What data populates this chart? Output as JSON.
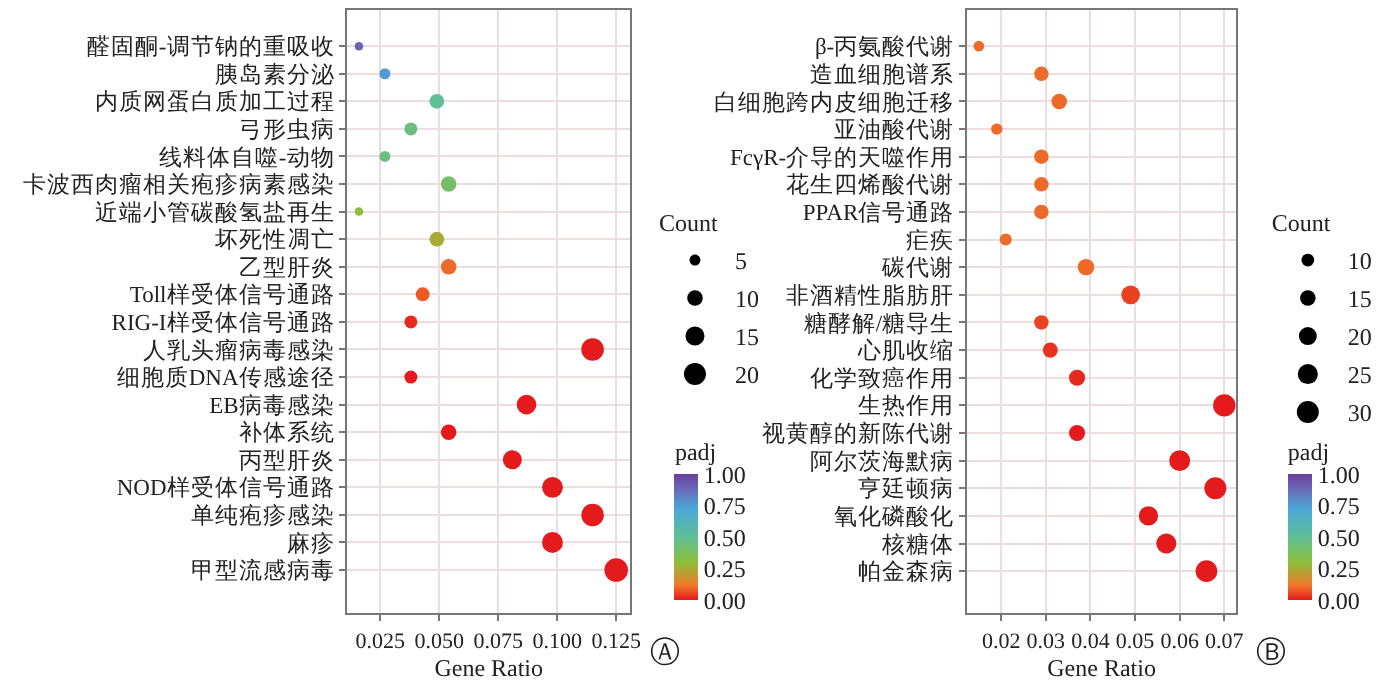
{
  "chart_data": [
    {
      "type": "bubble",
      "orientation": "horizontal",
      "xlabel": "Gene Ratio",
      "legend_title": "Count",
      "clabel": "padj",
      "grid": true,
      "annotations": [
        "Ⓐ"
      ],
      "categories": [
        "醛固酮-调节钠的重吸收",
        "胰岛素分泌",
        "内质网蛋白质加工过程",
        "弓形虫病",
        "线料体自噬-动物",
        "卡波西肉瘤相关疱疹病素感染",
        "近端小管碳酸氢盐再生",
        "坏死性凋亡",
        "乙型肝炎",
        "Toll样受体信号通路",
        "RIG-I样受体信号通路",
        "人乳头瘤病毒感染",
        "细胞质DNA传感途径",
        "EB病毒感染",
        "补体系统",
        "丙型肝炎",
        "NOD样受体信号通路",
        "单纯疱疹感染",
        "麻疹",
        "甲型流感病毒"
      ],
      "values": [
        0.016,
        0.027,
        0.049,
        0.038,
        0.027,
        0.054,
        0.016,
        0.049,
        0.054,
        0.043,
        0.038,
        0.115,
        0.038,
        0.087,
        0.054,
        0.081,
        0.098,
        0.115,
        0.098,
        0.125
      ],
      "sizes": [
        3,
        5,
        9,
        7,
        5,
        10,
        3,
        9,
        10,
        8,
        7,
        21,
        7,
        16,
        10,
        15,
        18,
        21,
        18,
        23
      ],
      "cvalues": [
        0.9,
        0.75,
        0.5,
        0.45,
        0.45,
        0.4,
        0.3,
        0.25,
        0.1,
        0.08,
        0.02,
        0,
        0,
        0,
        0,
        0,
        0,
        0,
        0,
        0
      ],
      "size_legend": [
        5,
        10,
        15,
        20
      ],
      "clim": [
        0,
        1
      ],
      "cticks": [
        {
          "value": 0,
          "label": "0.00"
        },
        {
          "value": 0.25,
          "label": "0.25"
        },
        {
          "value": 0.5,
          "label": "0.50"
        },
        {
          "value": 0.75,
          "label": "0.75"
        },
        {
          "value": 1,
          "label": "1.00"
        }
      ],
      "xlim": [
        0.011,
        0.131
      ],
      "xticks": [
        {
          "value": 0.025,
          "label": "0.025"
        },
        {
          "value": 0.05,
          "label": "0.050"
        },
        {
          "value": 0.075,
          "label": "0.075"
        },
        {
          "value": 0.1,
          "label": "0.100"
        },
        {
          "value": 0.125,
          "label": "0.125"
        }
      ]
    },
    {
      "type": "bubble",
      "orientation": "horizontal",
      "xlabel": "Gene Ratio",
      "legend_title": "Count",
      "clabel": "padj",
      "grid": true,
      "annotations": [
        "Ⓑ"
      ],
      "categories": [
        "β-丙氨酸代谢",
        "造血细胞谱系",
        "白细胞跨内皮细胞迁移",
        "亚油酸代谢",
        "FcγR-介导的天噬作用",
        "花生四烯酸代谢",
        "PPAR信号通路",
        "疟疾",
        "碳代谢",
        "非酒精性脂肪肝",
        "糖酵解/糖导生",
        "心肌收缩",
        "化学致癌作用",
        "生热作用",
        "视黄醇的新陈代谢",
        "阿尔茨海默病",
        "亨廷顿病",
        "氧化磷酸化",
        "核糖体",
        "帕金森病"
      ],
      "values": [
        0.015,
        0.029,
        0.033,
        0.019,
        0.029,
        0.029,
        0.029,
        0.021,
        0.039,
        0.049,
        0.029,
        0.031,
        0.037,
        0.07,
        0.037,
        0.06,
        0.068,
        0.053,
        0.057,
        0.066
      ],
      "sizes": [
        7,
        13,
        15,
        8,
        13,
        13,
        13,
        9,
        17,
        22,
        13,
        14,
        16,
        31,
        16,
        27,
        30,
        23,
        25,
        29
      ],
      "cvalues": [
        0.1,
        0.1,
        0.1,
        0.1,
        0.1,
        0.1,
        0.1,
        0.1,
        0.1,
        0.05,
        0.05,
        0.03,
        0.02,
        0,
        0,
        0,
        0,
        0,
        0,
        0
      ],
      "size_legend": [
        10,
        15,
        20,
        25,
        30
      ],
      "clim": [
        0,
        1
      ],
      "cticks": [
        {
          "value": 0,
          "label": "0.00"
        },
        {
          "value": 0.25,
          "label": "0.25"
        },
        {
          "value": 0.5,
          "label": "0.50"
        },
        {
          "value": 0.75,
          "label": "0.75"
        },
        {
          "value": 1,
          "label": "1.00"
        }
      ],
      "xlim": [
        0.0123,
        0.0727
      ],
      "xticks": [
        {
          "value": 0.02,
          "label": "0.02"
        },
        {
          "value": 0.03,
          "label": "0.03"
        },
        {
          "value": 0.04,
          "label": "0.04"
        },
        {
          "value": 0.05,
          "label": "0.05"
        },
        {
          "value": 0.06,
          "label": "0.06"
        },
        {
          "value": 0.07,
          "label": "0.07"
        }
      ]
    }
  ]
}
